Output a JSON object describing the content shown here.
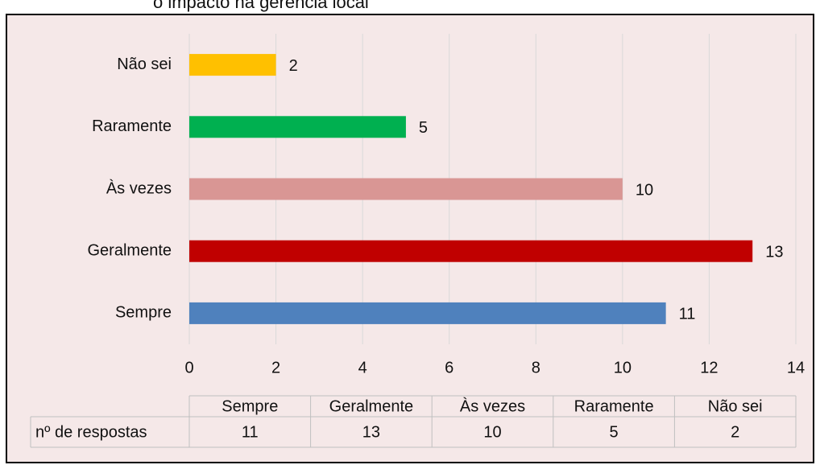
{
  "chart_data": {
    "type": "bar",
    "orientation": "horizontal",
    "title": "o impacto na gerência local",
    "categories": [
      "Sempre",
      "Geralmente",
      "Às vezes",
      "Raramente",
      "Não sei"
    ],
    "values": [
      11,
      13,
      10,
      5,
      2
    ],
    "colors": [
      "#4f81bd",
      "#c00000",
      "#d99694",
      "#00b050",
      "#ffc000"
    ],
    "xlim": [
      0,
      14
    ],
    "xticks": [
      0,
      2,
      4,
      6,
      8,
      10,
      12,
      14
    ],
    "grid": true,
    "data_table_row_label": "nº de respostas"
  }
}
